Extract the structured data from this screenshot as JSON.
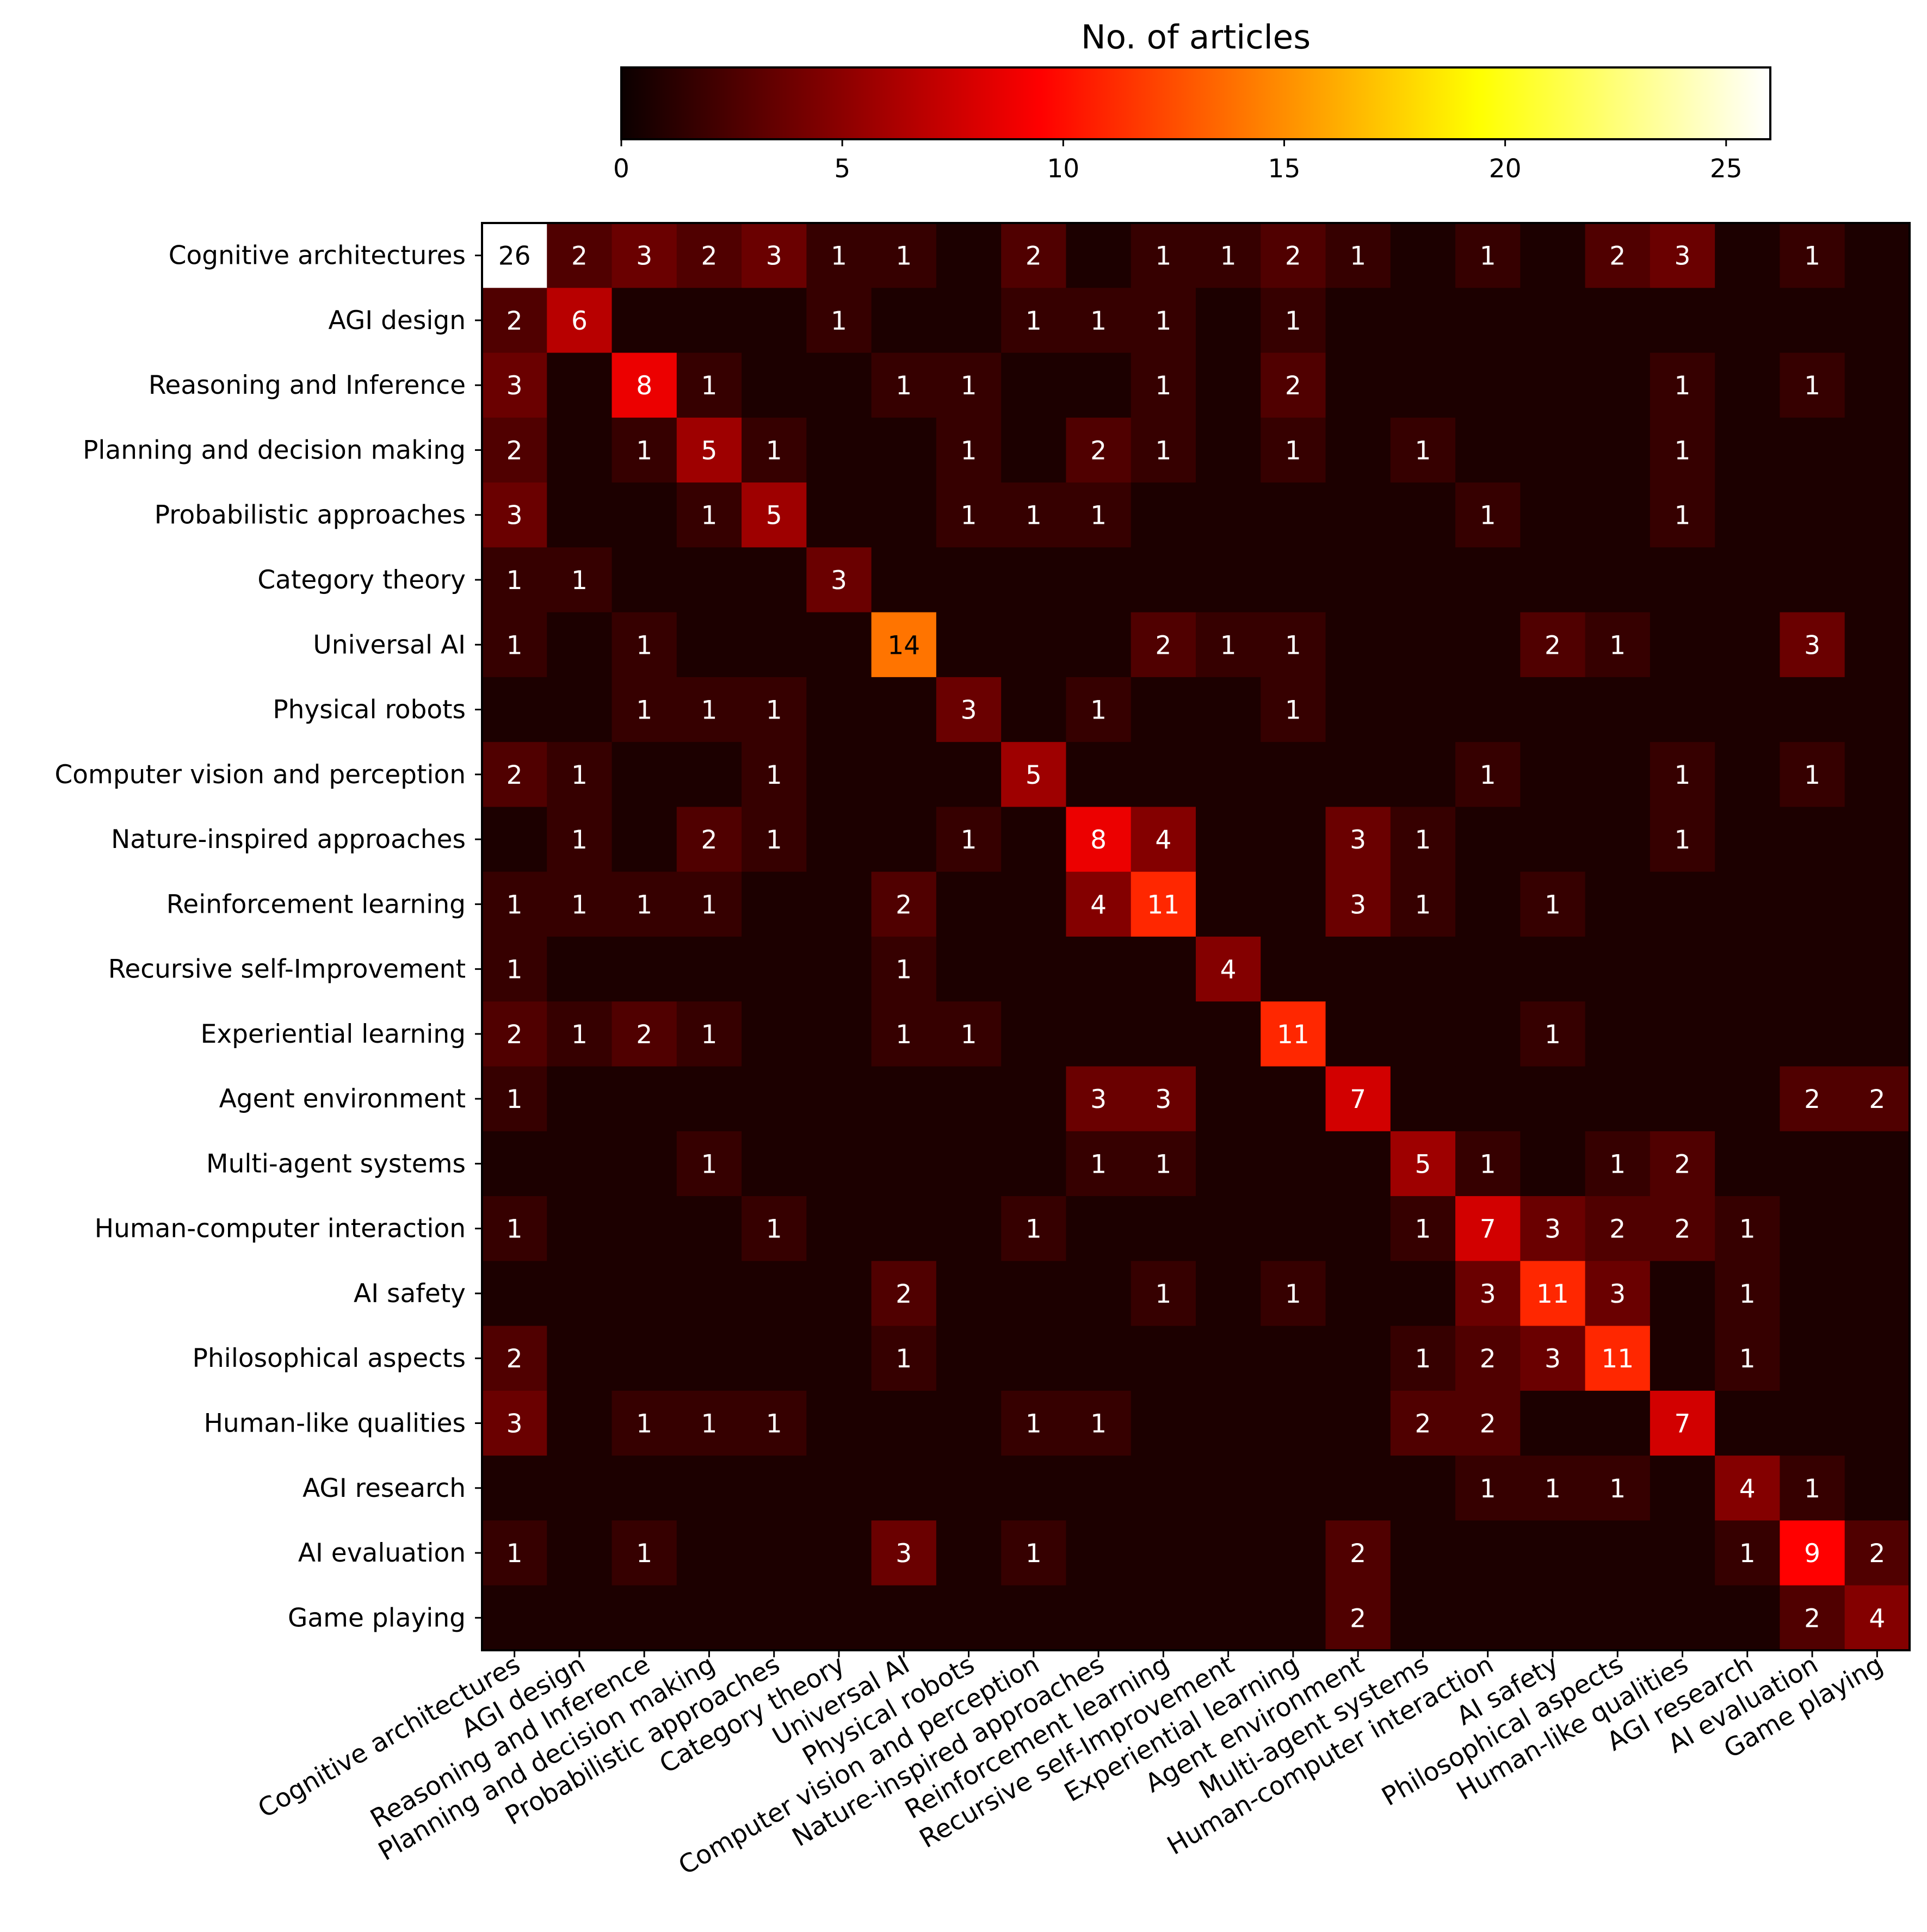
{
  "chart_data": {
    "type": "heatmap",
    "colorbar": {
      "label": "No. of articles",
      "range": [
        0,
        26
      ],
      "ticks": [
        0,
        5,
        10,
        15,
        20,
        25
      ],
      "colormap": "hot"
    },
    "rows": [
      "Cognitive architectures",
      "AGI design",
      "Reasoning and Inference",
      "Planning and decision making",
      "Probabilistic approaches",
      "Category theory",
      "Universal AI",
      "Physical robots",
      "Computer vision and perception",
      "Nature-inspired approaches",
      "Reinforcement learning",
      "Recursive self-Improvement",
      "Experiential learning",
      "Agent environment",
      "Multi-agent systems",
      "Human-computer interaction",
      "AI safety",
      "Philosophical aspects",
      "Human-like qualities",
      "AGI research",
      "AI evaluation",
      "Game playing"
    ],
    "columns": [
      "Cognitive architectures",
      "AGI design",
      "Reasoning and Inference",
      "Planning and decision making",
      "Probabilistic approaches",
      "Category theory",
      "Universal AI",
      "Physical robots",
      "Computer vision and perception",
      "Nature-inspired approaches",
      "Reinforcement learning",
      "Recursive self-Improvement",
      "Experiential learning",
      "Agent environment",
      "Multi-agent systems",
      "Human-computer interaction",
      "AI safety",
      "Philosophical aspects",
      "Human-like qualities",
      "AGI research",
      "AI evaluation",
      "Game playing"
    ],
    "values": [
      [
        26,
        2,
        3,
        2,
        3,
        1,
        1,
        0,
        2,
        0,
        1,
        1,
        2,
        1,
        0,
        1,
        0,
        2,
        3,
        0,
        1,
        0
      ],
      [
        2,
        6,
        0,
        0,
        0,
        1,
        0,
        0,
        1,
        1,
        1,
        0,
        1,
        0,
        0,
        0,
        0,
        0,
        0,
        0,
        0,
        0
      ],
      [
        3,
        0,
        8,
        1,
        0,
        0,
        1,
        1,
        0,
        0,
        1,
        0,
        2,
        0,
        0,
        0,
        0,
        0,
        1,
        0,
        1,
        0
      ],
      [
        2,
        0,
        1,
        5,
        1,
        0,
        0,
        1,
        0,
        2,
        1,
        0,
        1,
        0,
        1,
        0,
        0,
        0,
        1,
        0,
        0,
        0
      ],
      [
        3,
        0,
        0,
        1,
        5,
        0,
        0,
        1,
        1,
        1,
        0,
        0,
        0,
        0,
        0,
        1,
        0,
        0,
        1,
        0,
        0,
        0
      ],
      [
        1,
        1,
        0,
        0,
        0,
        3,
        0,
        0,
        0,
        0,
        0,
        0,
        0,
        0,
        0,
        0,
        0,
        0,
        0,
        0,
        0,
        0
      ],
      [
        1,
        0,
        1,
        0,
        0,
        0,
        14,
        0,
        0,
        0,
        2,
        1,
        1,
        0,
        0,
        0,
        2,
        1,
        0,
        0,
        3,
        0
      ],
      [
        0,
        0,
        1,
        1,
        1,
        0,
        0,
        3,
        0,
        1,
        0,
        0,
        1,
        0,
        0,
        0,
        0,
        0,
        0,
        0,
        0,
        0
      ],
      [
        2,
        1,
        0,
        0,
        1,
        0,
        0,
        0,
        5,
        0,
        0,
        0,
        0,
        0,
        0,
        1,
        0,
        0,
        1,
        0,
        1,
        0
      ],
      [
        0,
        1,
        0,
        2,
        1,
        0,
        0,
        1,
        0,
        8,
        4,
        0,
        0,
        3,
        1,
        0,
        0,
        0,
        1,
        0,
        0,
        0
      ],
      [
        1,
        1,
        1,
        1,
        0,
        0,
        2,
        0,
        0,
        4,
        11,
        0,
        0,
        3,
        1,
        0,
        1,
        0,
        0,
        0,
        0,
        0
      ],
      [
        1,
        0,
        0,
        0,
        0,
        0,
        1,
        0,
        0,
        0,
        0,
        4,
        0,
        0,
        0,
        0,
        0,
        0,
        0,
        0,
        0,
        0
      ],
      [
        2,
        1,
        2,
        1,
        0,
        0,
        1,
        1,
        0,
        0,
        0,
        0,
        11,
        0,
        0,
        0,
        1,
        0,
        0,
        0,
        0,
        0
      ],
      [
        1,
        0,
        0,
        0,
        0,
        0,
        0,
        0,
        0,
        3,
        3,
        0,
        0,
        7,
        0,
        0,
        0,
        0,
        0,
        0,
        2,
        2
      ],
      [
        0,
        0,
        0,
        1,
        0,
        0,
        0,
        0,
        0,
        1,
        1,
        0,
        0,
        0,
        5,
        1,
        0,
        1,
        2,
        0,
        0,
        0
      ],
      [
        1,
        0,
        0,
        0,
        1,
        0,
        0,
        0,
        1,
        0,
        0,
        0,
        0,
        0,
        1,
        7,
        3,
        2,
        2,
        1,
        0,
        0
      ],
      [
        0,
        0,
        0,
        0,
        0,
        0,
        2,
        0,
        0,
        0,
        1,
        0,
        1,
        0,
        0,
        3,
        11,
        3,
        0,
        1,
        0,
        0
      ],
      [
        2,
        0,
        0,
        0,
        0,
        0,
        1,
        0,
        0,
        0,
        0,
        0,
        0,
        0,
        1,
        2,
        3,
        11,
        0,
        1,
        0,
        0
      ],
      [
        3,
        0,
        1,
        1,
        1,
        0,
        0,
        0,
        1,
        1,
        0,
        0,
        0,
        0,
        2,
        2,
        0,
        0,
        7,
        0,
        0,
        0
      ],
      [
        0,
        0,
        0,
        0,
        0,
        0,
        0,
        0,
        0,
        0,
        0,
        0,
        0,
        0,
        0,
        1,
        1,
        1,
        0,
        4,
        1,
        0
      ],
      [
        1,
        0,
        1,
        0,
        0,
        0,
        3,
        0,
        1,
        0,
        0,
        0,
        0,
        2,
        0,
        0,
        0,
        0,
        0,
        1,
        9,
        2
      ],
      [
        0,
        0,
        0,
        0,
        0,
        0,
        0,
        0,
        0,
        0,
        0,
        0,
        0,
        2,
        0,
        0,
        0,
        0,
        0,
        0,
        2,
        4
      ]
    ]
  }
}
